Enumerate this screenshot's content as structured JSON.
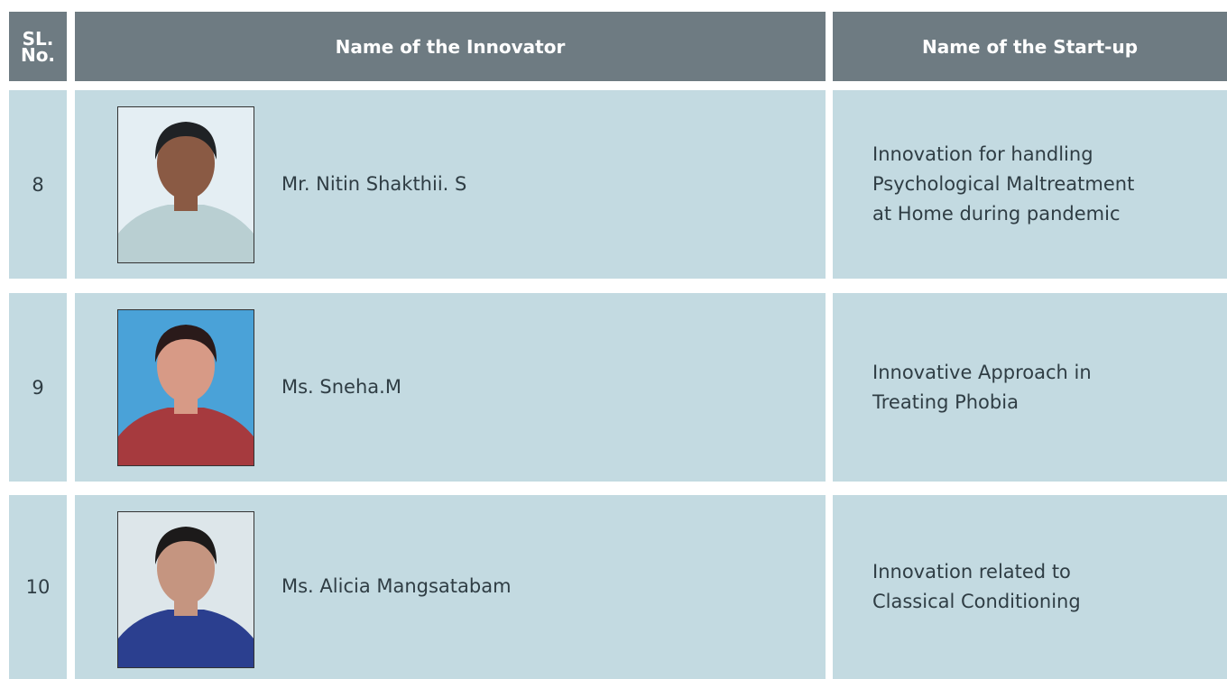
{
  "table": {
    "header": [
      "SL. No.",
      "Name of the Innovator",
      "Name of the Start-up"
    ],
    "rows": [
      {
        "sl": "8",
        "name": "Mr. Nitin Shakthii. S",
        "startup": [
          "Innovation for handling",
          "Psychological Maltreatment",
          "at Home during pandemic"
        ]
      },
      {
        "sl": "9",
        "name": "Ms. Sneha.M",
        "startup": [
          "Innovative Approach in",
          "Treating Phobia"
        ]
      },
      {
        "sl": "10",
        "name": "Ms. Alicia Mangsatabam",
        "startup": [
          "Innovation related to",
          "Classical Conditioning"
        ]
      }
    ]
  }
}
